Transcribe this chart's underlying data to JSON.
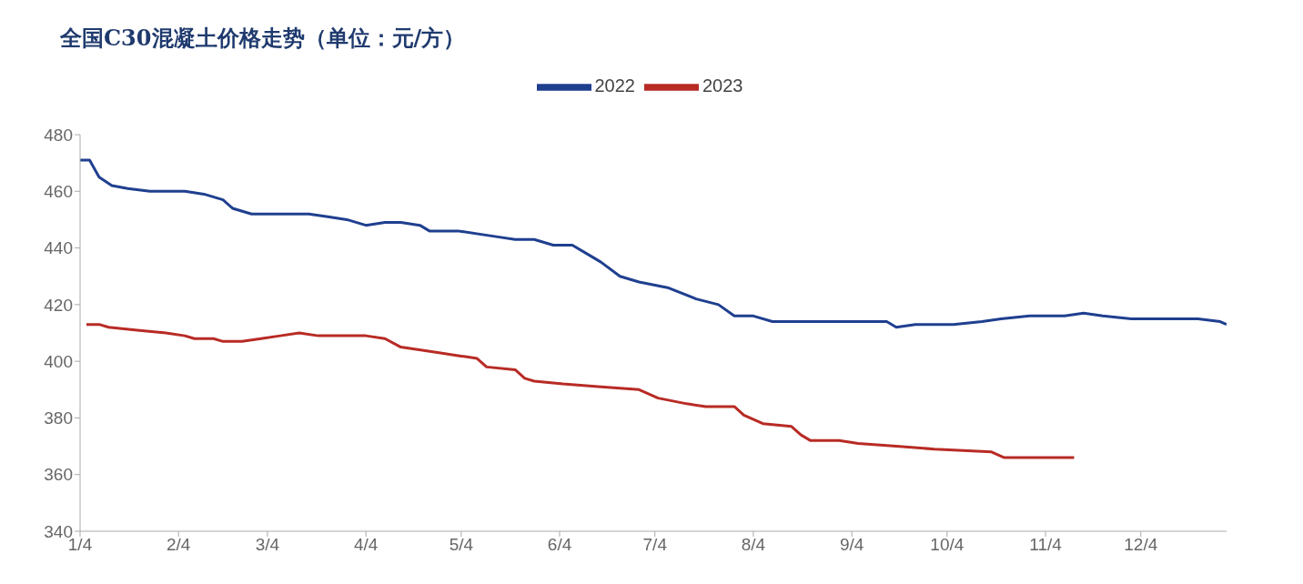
{
  "chart_data": {
    "type": "line",
    "title": "全国C30混凝土价格走势（单位：元/方）",
    "legend": "top",
    "xlim": [
      "--01-04",
      "--12-31"
    ],
    "xticks": [
      {
        "value": "--01-04",
        "label": "1/4"
      },
      {
        "value": "--02-04",
        "label": "2/4"
      },
      {
        "value": "--03-04",
        "label": "3/4"
      },
      {
        "value": "--04-04",
        "label": "4/4"
      },
      {
        "value": "--05-04",
        "label": "5/4"
      },
      {
        "value": "--06-04",
        "label": "6/4"
      },
      {
        "value": "--07-04",
        "label": "7/4"
      },
      {
        "value": "--08-04",
        "label": "8/4"
      },
      {
        "value": "--09-04",
        "label": "9/4"
      },
      {
        "value": "--10-04",
        "label": "10/4"
      },
      {
        "value": "--11-04",
        "label": "11/4"
      },
      {
        "value": "--12-04",
        "label": "12/4"
      }
    ],
    "ylim": [
      340,
      480
    ],
    "yticks": [
      340,
      360,
      380,
      400,
      420,
      440,
      460,
      480
    ],
    "series": [
      {
        "name": "2022",
        "color": "#1f3f8f",
        "x": [
          "--01-04",
          "--01-07",
          "--01-10",
          "--01-14",
          "--01-19",
          "--01-26",
          "--02-06",
          "--02-12",
          "--02-18",
          "--02-21",
          "--02-27",
          "--03-17",
          "--03-23",
          "--03-29",
          "--04-04",
          "--04-10",
          "--04-15",
          "--04-21",
          "--04-24",
          "--05-03",
          "--05-15",
          "--05-21",
          "--05-27",
          "--06-02",
          "--06-08",
          "--06-14",
          "--06-17",
          "--06-23",
          "--06-29",
          "--07-08",
          "--07-17",
          "--07-24",
          "--07-29",
          "--08-04",
          "--08-10",
          "--09-03",
          "--09-15",
          "--09-18",
          "--09-24",
          "--09-30",
          "--10-06",
          "--10-15",
          "--10-21",
          "--10-30",
          "--11-10",
          "--11-16",
          "--11-22",
          "--12-01",
          "--12-22",
          "--12-29",
          "--12-31"
        ],
        "values": [
          471,
          471,
          465,
          462,
          461,
          460,
          460,
          459,
          457,
          454,
          452,
          452,
          451,
          450,
          448,
          449,
          449,
          448,
          446,
          446,
          444,
          443,
          443,
          441,
          441,
          437,
          435,
          430,
          428,
          426,
          422,
          420,
          416,
          416,
          414,
          414,
          414,
          412,
          413,
          413,
          413,
          414,
          415,
          416,
          416,
          417,
          416,
          415,
          415,
          414,
          413
        ]
      },
      {
        "name": "2023",
        "color": "#b82b25",
        "x": [
          "--01-06",
          "--01-10",
          "--01-13",
          "--01-22",
          "--01-31",
          "--02-06",
          "--02-09",
          "--02-15",
          "--02-18",
          "--02-24",
          "--03-02",
          "--03-08",
          "--03-14",
          "--03-20",
          "--04-04",
          "--04-10",
          "--04-15",
          "--04-27",
          "--05-03",
          "--05-09",
          "--05-12",
          "--05-21",
          "--05-24",
          "--05-27",
          "--06-05",
          "--06-17",
          "--06-29",
          "--07-05",
          "--07-14",
          "--07-20",
          "--07-29",
          "--08-01",
          "--08-07",
          "--08-16",
          "--08-19",
          "--08-22",
          "--08-31",
          "--09-06",
          "--09-18",
          "--09-30",
          "--10-18",
          "--10-22",
          "--11-01",
          "--11-13"
        ],
        "values": [
          413,
          413,
          412,
          411,
          410,
          409,
          408,
          408,
          407,
          407,
          408,
          409,
          410,
          409,
          409,
          408,
          405,
          403,
          402,
          401,
          398,
          397,
          394,
          393,
          392,
          391,
          390,
          387,
          385,
          384,
          384,
          381,
          378,
          377,
          374,
          372,
          372,
          371,
          370,
          369,
          368,
          366,
          366,
          366
        ]
      }
    ]
  }
}
